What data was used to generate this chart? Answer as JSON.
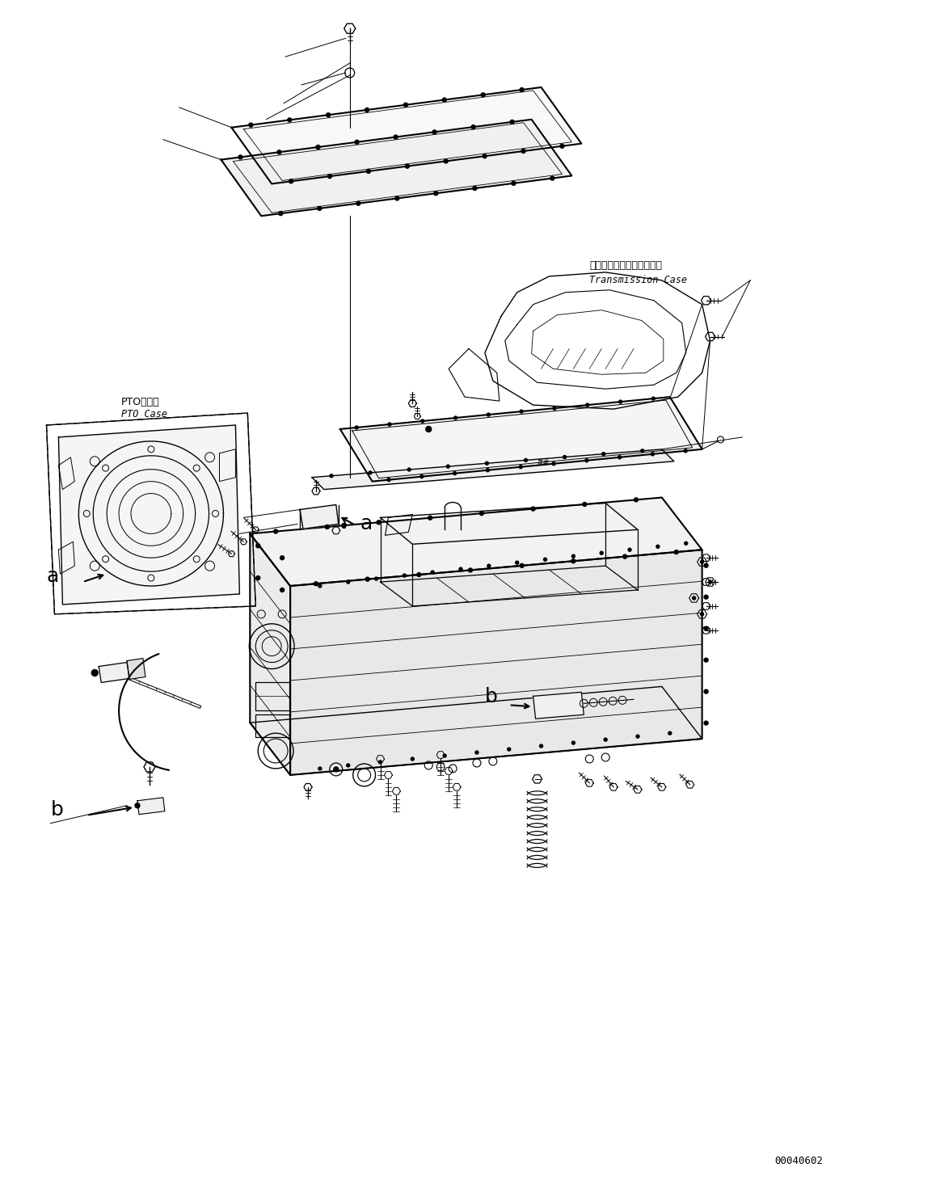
{
  "bg_color": "#ffffff",
  "line_color": "#000000",
  "text_color": "#000000",
  "figsize": [
    11.63,
    14.6
  ],
  "dpi": 100,
  "transmission_label_jp": "トランスミッションケース",
  "transmission_label_en": "Transmission Case",
  "pto_label_jp": "PTOケース",
  "pto_label_en": "PTO Case",
  "part_number": "00040602"
}
